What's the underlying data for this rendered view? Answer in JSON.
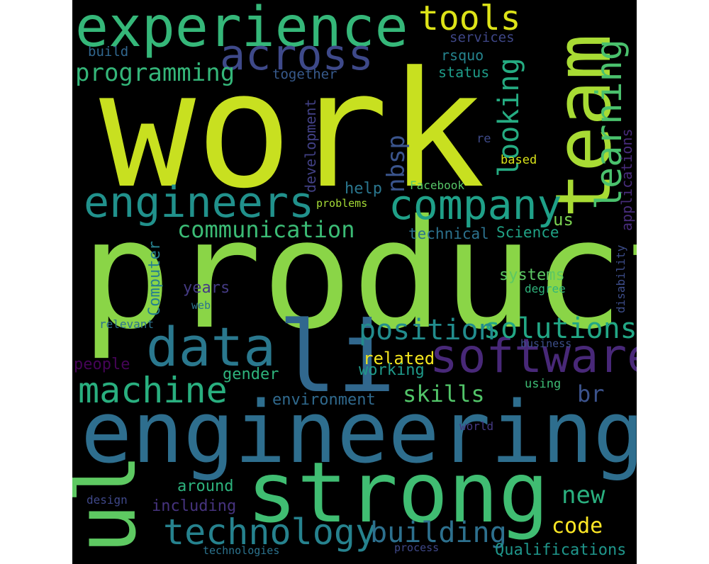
{
  "word_cloud": {
    "background": "#000000",
    "words": [
      {
        "key": "work",
        "text": "work",
        "color": "#c8e020",
        "orientation": "horizontal"
      },
      {
        "key": "product",
        "text": "product",
        "color": "#8ad547",
        "orientation": "horizontal"
      },
      {
        "key": "team",
        "text": "team",
        "color": "#a8db34",
        "orientation": "vertical"
      },
      {
        "key": "engineering",
        "text": "engineering",
        "color": "#2e6e8e",
        "orientation": "horizontal"
      },
      {
        "key": "strong",
        "text": "strong",
        "color": "#40bd72",
        "orientation": "horizontal"
      },
      {
        "key": "ul",
        "text": "ul",
        "color": "#5ec962",
        "orientation": "vertical"
      },
      {
        "key": "li",
        "text": "li",
        "color": "#31688e",
        "orientation": "horizontal"
      },
      {
        "key": "experience",
        "text": "experience",
        "color": "#35b779",
        "orientation": "horizontal"
      },
      {
        "key": "data",
        "text": "data",
        "color": "#2a788e",
        "orientation": "horizontal"
      },
      {
        "key": "software",
        "text": "software",
        "color": "#482878",
        "orientation": "horizontal"
      },
      {
        "key": "engineers",
        "text": "engineers",
        "color": "#21918c",
        "orientation": "horizontal"
      },
      {
        "key": "company",
        "text": "company",
        "color": "#1fa088",
        "orientation": "horizontal"
      },
      {
        "key": "across",
        "text": "across",
        "color": "#3e4989",
        "orientation": "horizontal"
      },
      {
        "key": "technology",
        "text": "technology",
        "color": "#26828e",
        "orientation": "horizontal"
      },
      {
        "key": "machine",
        "text": "machine",
        "color": "#29af7f",
        "orientation": "horizontal"
      },
      {
        "key": "learning",
        "text": "learning",
        "color": "#4ac16d",
        "orientation": "vertical"
      },
      {
        "key": "tools",
        "text": "tools",
        "color": "#dde318",
        "orientation": "horizontal"
      },
      {
        "key": "solutions",
        "text": "solutions",
        "color": "#22a785",
        "orientation": "horizontal"
      },
      {
        "key": "position",
        "text": "position",
        "color": "#228c8d",
        "orientation": "horizontal"
      },
      {
        "key": "building",
        "text": "building",
        "color": "#2d708e",
        "orientation": "horizontal"
      },
      {
        "key": "looking",
        "text": "looking",
        "color": "#25ac82",
        "orientation": "vertical"
      },
      {
        "key": "programming",
        "text": "programming",
        "color": "#34b679",
        "orientation": "horizontal"
      },
      {
        "key": "communication",
        "text": "communication",
        "color": "#3bbb75",
        "orientation": "horizontal"
      },
      {
        "key": "nbsp",
        "text": "nbsp",
        "color": "#3a548c",
        "orientation": "vertical"
      },
      {
        "key": "new",
        "text": "new",
        "color": "#2ab07f",
        "orientation": "horizontal"
      },
      {
        "key": "skills",
        "text": "skills",
        "color": "#52c569",
        "orientation": "horizontal"
      },
      {
        "key": "br",
        "text": "br",
        "color": "#3b528b",
        "orientation": "horizontal"
      },
      {
        "key": "code",
        "text": "code",
        "color": "#fde725",
        "orientation": "horizontal"
      },
      {
        "key": "related",
        "text": "related",
        "color": "#f4e61e",
        "orientation": "horizontal"
      },
      {
        "key": "working",
        "text": "working",
        "color": "#1f9a8a",
        "orientation": "horizontal"
      },
      {
        "key": "Qualifications",
        "text": "Qualifications",
        "color": "#1f968b",
        "orientation": "horizontal"
      },
      {
        "key": "applications",
        "text": "applications",
        "color": "#472c7a",
        "orientation": "vertical"
      },
      {
        "key": "Science",
        "text": "Science",
        "color": "#20a386",
        "orientation": "horizontal"
      },
      {
        "key": "technical",
        "text": "technical",
        "color": "#2c728e",
        "orientation": "horizontal"
      },
      {
        "key": "us",
        "text": "us",
        "color": "#7ad151",
        "orientation": "horizontal"
      },
      {
        "key": "systems",
        "text": "systems",
        "color": "#5cc863",
        "orientation": "horizontal"
      },
      {
        "key": "environment",
        "text": "environment",
        "color": "#306a8e",
        "orientation": "horizontal"
      },
      {
        "key": "gender",
        "text": "gender",
        "color": "#2eb37c",
        "orientation": "horizontal"
      },
      {
        "key": "around",
        "text": "around",
        "color": "#2db27d",
        "orientation": "horizontal"
      },
      {
        "key": "including",
        "text": "including",
        "color": "#46337e",
        "orientation": "horizontal"
      },
      {
        "key": "people",
        "text": "people",
        "color": "#450457",
        "orientation": "horizontal"
      },
      {
        "key": "years",
        "text": "years",
        "color": "#443a83",
        "orientation": "horizontal"
      },
      {
        "key": "Computer",
        "text": "Computer",
        "color": "#27808e",
        "orientation": "vertical"
      },
      {
        "key": "development",
        "text": "development",
        "color": "#424186",
        "orientation": "vertical"
      },
      {
        "key": "help",
        "text": "help",
        "color": "#2a768e",
        "orientation": "horizontal"
      },
      {
        "key": "together",
        "text": "together",
        "color": "#375a8c",
        "orientation": "horizontal"
      },
      {
        "key": "build",
        "text": "build",
        "color": "#31678e",
        "orientation": "horizontal"
      },
      {
        "key": "services",
        "text": "services",
        "color": "#3f4788",
        "orientation": "horizontal"
      },
      {
        "key": "rsquo",
        "text": "rsquo",
        "color": "#25848e",
        "orientation": "horizontal"
      },
      {
        "key": "status",
        "text": "status",
        "color": "#1e9c89",
        "orientation": "horizontal"
      },
      {
        "key": "re",
        "text": "re",
        "color": "#3e4a89",
        "orientation": "horizontal"
      },
      {
        "key": "based",
        "text": "based",
        "color": "#d8e219",
        "orientation": "horizontal"
      },
      {
        "key": "Facebook",
        "text": "Facebook",
        "color": "#56c667",
        "orientation": "horizontal"
      },
      {
        "key": "problems",
        "text": "problems",
        "color": "#a5db36",
        "orientation": "horizontal"
      },
      {
        "key": "disability",
        "text": "disability",
        "color": "#3d4d8a",
        "orientation": "vertical"
      },
      {
        "key": "degree",
        "text": "degree",
        "color": "#2fb47c",
        "orientation": "horizontal"
      },
      {
        "key": "web",
        "text": "web",
        "color": "#2b748e",
        "orientation": "horizontal"
      },
      {
        "key": "relevant",
        "text": "relevant",
        "color": "#2c718e",
        "orientation": "horizontal"
      },
      {
        "key": "business",
        "text": "business",
        "color": "#3c4f8a",
        "orientation": "horizontal"
      },
      {
        "key": "using",
        "text": "using",
        "color": "#3dbc74",
        "orientation": "horizontal"
      },
      {
        "key": "world",
        "text": "world",
        "color": "#443983",
        "orientation": "horizontal"
      },
      {
        "key": "design",
        "text": "design",
        "color": "#3f4889",
        "orientation": "horizontal"
      },
      {
        "key": "technologies",
        "text": "technologies",
        "color": "#2c738e",
        "orientation": "horizontal"
      },
      {
        "key": "process",
        "text": "process",
        "color": "#3f4889",
        "orientation": "horizontal"
      }
    ]
  }
}
